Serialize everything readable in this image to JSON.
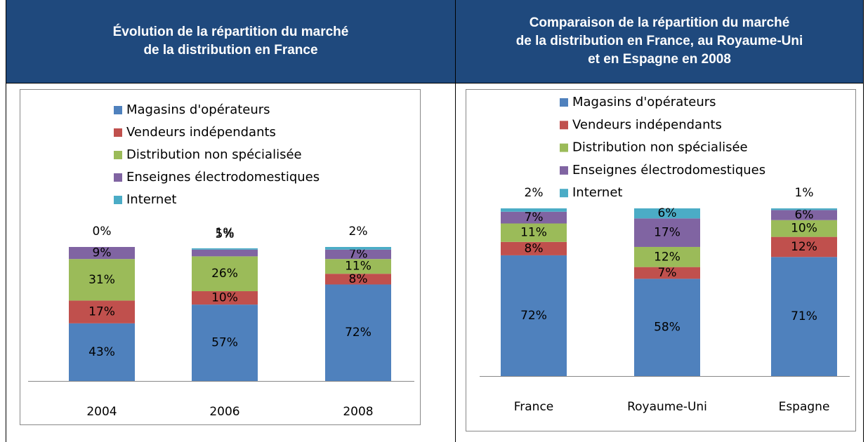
{
  "chart_data": [
    {
      "type": "bar",
      "stacked": true,
      "title": "Évolution de la répartition du marché\nde la distribution en France",
      "categories": [
        "2004",
        "2006",
        "2008"
      ],
      "legend": "top",
      "series": [
        {
          "name": "Magasins d'opérateurs",
          "color": "#4f81bd",
          "values": [
            43,
            57,
            72
          ],
          "value_labels": [
            "43%",
            "57%",
            "72%"
          ]
        },
        {
          "name": "Vendeurs indépendants",
          "color": "#c0504d",
          "values": [
            17,
            10,
            8
          ],
          "value_labels": [
            "17%",
            "10%",
            "8%"
          ]
        },
        {
          "name": "Distribution non spécialisée",
          "color": "#9bbb59",
          "values": [
            31,
            26,
            11
          ],
          "value_labels": [
            "31%",
            "26%",
            "11%"
          ]
        },
        {
          "name": "Enseignes électrodomestiques",
          "color": "#8064a2",
          "values": [
            9,
            5,
            7
          ],
          "value_labels": [
            "9%",
            "5%",
            "7%"
          ]
        },
        {
          "name": "Internet",
          "color": "#4bacc6",
          "values": [
            0,
            1,
            2
          ],
          "value_labels": [
            "0%",
            "1%",
            "2%"
          ]
        }
      ]
    },
    {
      "type": "bar",
      "stacked": true,
      "title": "Comparaison de la répartition du marché\nde la distribution en France, au Royaume-Uni\net en Espagne en 2008",
      "categories": [
        "France",
        "Royaume-Uni",
        "Espagne"
      ],
      "legend": "top",
      "series": [
        {
          "name": "Magasins d'opérateurs",
          "color": "#4f81bd",
          "values": [
            72,
            58,
            71
          ],
          "value_labels": [
            "72%",
            "58%",
            "71%"
          ]
        },
        {
          "name": "Vendeurs indépendants",
          "color": "#c0504d",
          "values": [
            8,
            7,
            12
          ],
          "value_labels": [
            "8%",
            "7%",
            "12%"
          ]
        },
        {
          "name": "Distribution non spécialisée",
          "color": "#9bbb59",
          "values": [
            11,
            12,
            10
          ],
          "value_labels": [
            "11%",
            "12%",
            "10%"
          ]
        },
        {
          "name": "Enseignes électrodomestiques",
          "color": "#8064a2",
          "values": [
            7,
            17,
            6
          ],
          "value_labels": [
            "7%",
            "17%",
            "6%"
          ]
        },
        {
          "name": "Internet",
          "color": "#4bacc6",
          "values": [
            2,
            6,
            1
          ],
          "value_labels": [
            "2%",
            "6%",
            "1%"
          ]
        }
      ]
    }
  ]
}
